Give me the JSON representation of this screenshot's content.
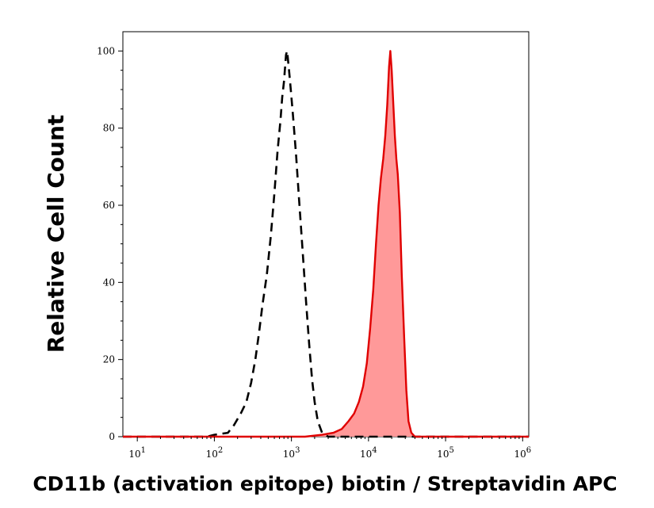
{
  "chart_data": {
    "type": "area",
    "xlabel": "CD11b (activation epitope) biotin / Streptavidin APC",
    "ylabel": "Relative Cell Count",
    "x_scale": "log",
    "xlim": [
      6.5,
      1200000
    ],
    "ylim": [
      0,
      105
    ],
    "x_ticks": [
      {
        "value": 10,
        "label": "10",
        "exp": "1"
      },
      {
        "value": 100,
        "label": "10",
        "exp": "2"
      },
      {
        "value": 1000,
        "label": "10",
        "exp": "3"
      },
      {
        "value": 10000,
        "label": "10",
        "exp": "4"
      },
      {
        "value": 100000,
        "label": "10",
        "exp": "5"
      },
      {
        "value": 1000000,
        "label": "10",
        "exp": "6"
      }
    ],
    "y_ticks": [
      0,
      20,
      40,
      60,
      80,
      100
    ],
    "grid": false,
    "series": [
      {
        "style": "dashed",
        "color": "#000000",
        "fill": "none",
        "points": [
          [
            6.5,
            0
          ],
          [
            80,
            0
          ],
          [
            100,
            0.5
          ],
          [
            150,
            1
          ],
          [
            180,
            3
          ],
          [
            220,
            6
          ],
          [
            260,
            9
          ],
          [
            300,
            14
          ],
          [
            340,
            20
          ],
          [
            380,
            27
          ],
          [
            420,
            34
          ],
          [
            480,
            42
          ],
          [
            540,
            52
          ],
          [
            600,
            63
          ],
          [
            660,
            74
          ],
          [
            720,
            82
          ],
          [
            760,
            88
          ],
          [
            800,
            92
          ],
          [
            850,
            99
          ],
          [
            880,
            100
          ],
          [
            930,
            95
          ],
          [
            980,
            90
          ],
          [
            1050,
            83
          ],
          [
            1150,
            73
          ],
          [
            1250,
            62
          ],
          [
            1400,
            48
          ],
          [
            1550,
            35
          ],
          [
            1700,
            24
          ],
          [
            1850,
            15
          ],
          [
            2000,
            9
          ],
          [
            2200,
            4
          ],
          [
            2500,
            1
          ],
          [
            3000,
            0
          ],
          [
            1200000,
            0
          ]
        ]
      },
      {
        "style": "solid",
        "color": "#e00000",
        "fill": "#ff9999",
        "points": [
          [
            6.5,
            0
          ],
          [
            1500,
            0
          ],
          [
            2500,
            0.5
          ],
          [
            3500,
            1
          ],
          [
            4500,
            2
          ],
          [
            5500,
            4
          ],
          [
            6500,
            6
          ],
          [
            7500,
            9
          ],
          [
            8500,
            13
          ],
          [
            9500,
            19
          ],
          [
            10500,
            28
          ],
          [
            11500,
            38
          ],
          [
            12500,
            50
          ],
          [
            13500,
            60
          ],
          [
            14500,
            67
          ],
          [
            15500,
            72
          ],
          [
            16500,
            78
          ],
          [
            17500,
            86
          ],
          [
            18500,
            96
          ],
          [
            19200,
            100
          ],
          [
            20000,
            95
          ],
          [
            21000,
            86
          ],
          [
            22000,
            78
          ],
          [
            23000,
            72
          ],
          [
            24000,
            68
          ],
          [
            25500,
            58
          ],
          [
            27000,
            42
          ],
          [
            29000,
            26
          ],
          [
            31000,
            12
          ],
          [
            33000,
            4
          ],
          [
            36000,
            1
          ],
          [
            40000,
            0
          ],
          [
            1200000,
            0
          ]
        ]
      }
    ]
  }
}
